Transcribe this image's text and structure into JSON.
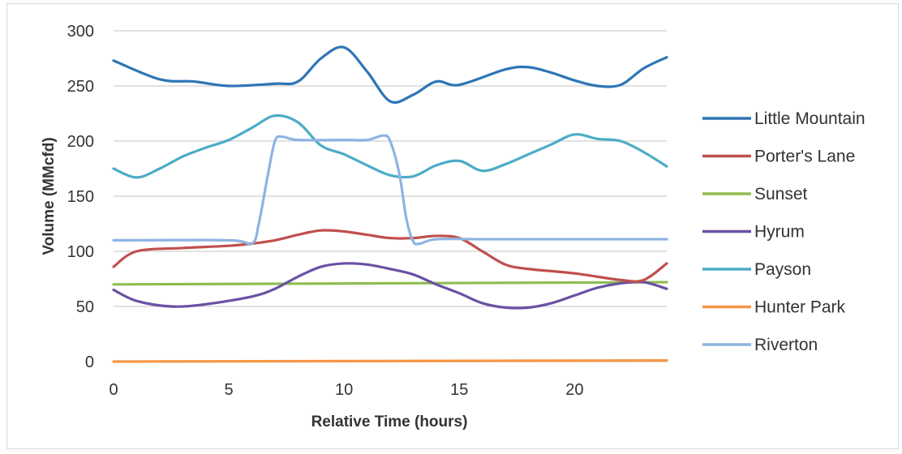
{
  "chart_data": {
    "type": "line",
    "title": "",
    "xlabel": "Relative Time (hours)",
    "ylabel": "Volume (MMcfd)",
    "xlim": [
      0,
      24
    ],
    "ylim": [
      0,
      300
    ],
    "xticks": [
      0,
      5,
      10,
      15,
      20
    ],
    "yticks": [
      0,
      50,
      100,
      150,
      200,
      250,
      300
    ],
    "grid": "horizontal",
    "legend_position": "right",
    "series": [
      {
        "name": "Little Mountain",
        "color": "#2e75b6",
        "x": [
          0,
          2,
          3.5,
          5,
          7,
          8,
          9,
          10,
          11,
          12,
          13,
          14,
          15,
          17,
          18,
          19,
          20,
          21,
          22,
          23,
          24
        ],
        "y": [
          273,
          256,
          254,
          250,
          252,
          254,
          275,
          285,
          263,
          236,
          242,
          254,
          251,
          265,
          267,
          262,
          255,
          250,
          251,
          266,
          276
        ]
      },
      {
        "name": "Porter's Lane",
        "color": "#c0504d",
        "x": [
          0,
          1,
          3,
          5,
          6,
          7,
          8,
          9,
          10,
          11,
          12,
          13,
          14,
          15,
          16,
          17,
          18,
          20,
          22,
          23,
          24
        ],
        "y": [
          86,
          100,
          103,
          105,
          107,
          110,
          115,
          119,
          118,
          115,
          112,
          112,
          114,
          112,
          100,
          88,
          84,
          80,
          74,
          74,
          89
        ]
      },
      {
        "name": "Sunset",
        "color": "#8fbd4f",
        "x": [
          0,
          24
        ],
        "y": [
          70,
          72
        ]
      },
      {
        "name": "Hyrum",
        "color": "#6a51a3",
        "x": [
          0,
          1,
          2.5,
          4,
          6,
          7,
          8,
          9,
          10,
          11,
          12,
          13,
          14,
          15,
          16,
          17,
          18,
          19,
          20,
          21,
          22,
          23,
          24
        ],
        "y": [
          65,
          55,
          50,
          52,
          59,
          66,
          77,
          86,
          89,
          88,
          84,
          79,
          70,
          62,
          53,
          49,
          49,
          53,
          60,
          67,
          71,
          72,
          66
        ]
      },
      {
        "name": "Payson",
        "color": "#4bacc6",
        "x": [
          0,
          1,
          2,
          3,
          4,
          5,
          6,
          7,
          8,
          9,
          10,
          11,
          12,
          13,
          14,
          15,
          16,
          17,
          18,
          19,
          20,
          21,
          22,
          23,
          24
        ],
        "y": [
          175,
          167,
          175,
          186,
          194,
          201,
          212,
          223,
          217,
          196,
          188,
          178,
          169,
          168,
          178,
          182,
          173,
          179,
          188,
          197,
          206,
          202,
          200,
          190,
          177
        ]
      },
      {
        "name": "Hunter Park",
        "color": "#f79646",
        "x": [
          0,
          24
        ],
        "y": [
          0,
          1
        ]
      },
      {
        "name": "Riverton",
        "color": "#8db4e2",
        "x": [
          0,
          5,
          6,
          6.3,
          6.7,
          7,
          7.3,
          8,
          10,
          11,
          11.7,
          12,
          12.4,
          12.7,
          13,
          13.3,
          14,
          16,
          20,
          24
        ],
        "y": [
          110,
          110,
          107,
          125,
          170,
          200,
          204,
          201,
          201,
          201,
          205,
          200,
          170,
          130,
          109,
          107,
          111,
          111,
          111,
          111
        ]
      }
    ]
  }
}
